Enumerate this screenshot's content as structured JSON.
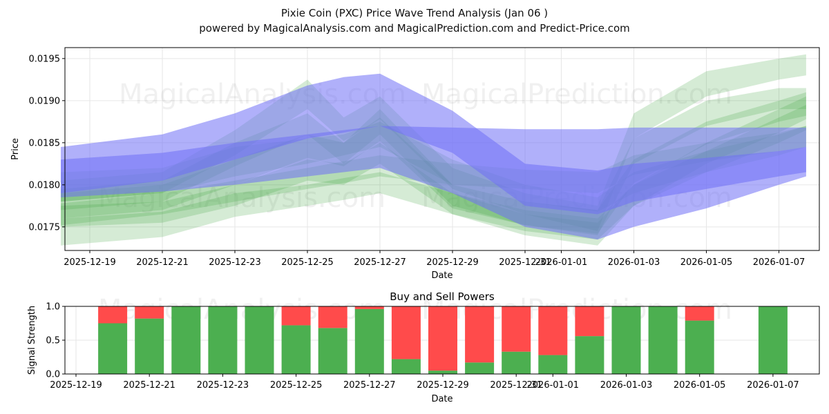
{
  "header": {
    "title": "Pixie Coin (PXC) Price Wave Trend Analysis (Jan 06 )",
    "subtitle": "powered by MagicalAnalysis.com and MagicalPrediction.com and Predict-Price.com"
  },
  "watermarks": [
    "MagicalAnalysis.com",
    "MagicalPrediction.com",
    "MagicalAnalysis.com",
    "MagicalPrediction.com",
    "MagicalAnalysis.com",
    "MagicalPrediction.com"
  ],
  "colors": {
    "blue_band": "#6f6ff5",
    "green_band": "#3fa63f",
    "buy": "#4caf50",
    "sell": "#ff4b4b",
    "grid": "#e6e6e6"
  },
  "chart_data": [
    {
      "type": "area",
      "title": "",
      "xlabel": "Date",
      "ylabel": "Price",
      "ylim": [
        0.01722,
        0.01963
      ],
      "x_tick_labels": [
        "2025-12-19",
        "2025-12-21",
        "2025-12-23",
        "2025-12-25",
        "2025-12-27",
        "2025-12-29",
        "2025-12-31",
        "2026-01-01",
        "2026-01-03",
        "2026-01-05",
        "2026-01-07"
      ],
      "y_tick_labels": [
        "0.0175",
        "0.0180",
        "0.0185",
        "0.0190",
        "0.0195"
      ],
      "y_ticks": [
        0.0175,
        0.018,
        0.0185,
        0.019,
        0.0195
      ],
      "x_days": [
        -0.8,
        2,
        4,
        6,
        7,
        8,
        10,
        12,
        14,
        15,
        17,
        19,
        19.75
      ],
      "blue_bands": [
        {
          "name": "trend-upper",
          "upper": [
            0.01845,
            0.0186,
            0.01885,
            0.01918,
            0.01928,
            0.01932,
            0.01888,
            0.01825,
            0.01817,
            0.01825,
            0.01832,
            0.0184,
            0.01845
          ],
          "lower": [
            0.0179,
            0.01805,
            0.0183,
            0.01855,
            0.01862,
            0.0187,
            0.01838,
            0.01775,
            0.01765,
            0.0178,
            0.01795,
            0.0181,
            0.01815
          ]
        },
        {
          "name": "trend-lower",
          "upper": [
            0.0183,
            0.01838,
            0.0185,
            0.0186,
            0.01865,
            0.0187,
            0.01868,
            0.01866,
            0.01866,
            0.01868,
            0.01868,
            0.01868,
            0.01868
          ],
          "lower": [
            0.01785,
            0.01792,
            0.018,
            0.0181,
            0.01815,
            0.0182,
            0.0179,
            0.0175,
            0.01735,
            0.0175,
            0.01772,
            0.018,
            0.0181
          ]
        }
      ],
      "green_bands": [
        {
          "upper": [
            0.01815,
            0.0182,
            0.01845,
            0.01855,
            0.0186,
            0.01875,
            0.0183,
            0.018,
            0.01785,
            0.01815,
            0.0184,
            0.0186,
            0.0187
          ],
          "lower": [
            0.0178,
            0.0179,
            0.0181,
            0.01825,
            0.01835,
            0.01845,
            0.018,
            0.0178,
            0.01768,
            0.0179,
            0.01815,
            0.01835,
            0.01845
          ]
        },
        {
          "upper": [
            0.01778,
            0.0179,
            0.01805,
            0.0182,
            0.01828,
            0.01835,
            0.01825,
            0.01818,
            0.01815,
            0.01835,
            0.0185,
            0.01862,
            0.0187
          ],
          "lower": [
            0.01752,
            0.01765,
            0.0178,
            0.01795,
            0.01802,
            0.0181,
            0.018,
            0.01795,
            0.0179,
            0.01812,
            0.01828,
            0.0184,
            0.01845
          ]
        },
        {
          "upper": [
            0.0176,
            0.01768,
            0.0179,
            0.018,
            0.01808,
            0.01815,
            0.0179,
            0.0177,
            0.0176,
            0.018,
            0.0184,
            0.0188,
            0.01895
          ],
          "lower": [
            0.01728,
            0.01738,
            0.01762,
            0.01775,
            0.01782,
            0.0179,
            0.01765,
            0.01745,
            0.01735,
            0.01775,
            0.01815,
            0.0185,
            0.01865
          ]
        },
        {
          "upper": [
            0.01805,
            0.01815,
            0.01865,
            0.01925,
            0.0188,
            0.01905,
            0.0182,
            0.0179,
            0.01775,
            0.01885,
            0.01935,
            0.0195,
            0.01955
          ],
          "lower": [
            0.0178,
            0.0179,
            0.01835,
            0.0189,
            0.01852,
            0.01878,
            0.01795,
            0.01765,
            0.01745,
            0.01855,
            0.01905,
            0.01925,
            0.0193
          ]
        },
        {
          "upper": [
            0.01795,
            0.01805,
            0.0185,
            0.01885,
            0.0185,
            0.0189,
            0.018,
            0.0178,
            0.0177,
            0.01855,
            0.019,
            0.01915,
            0.01915
          ],
          "lower": [
            0.0177,
            0.0178,
            0.01822,
            0.0186,
            0.01825,
            0.0186,
            0.01775,
            0.01752,
            0.0174,
            0.01825,
            0.0187,
            0.0189,
            0.0189
          ]
        },
        {
          "upper": [
            0.01775,
            0.0178,
            0.018,
            0.0183,
            0.01825,
            0.0185,
            0.0179,
            0.01765,
            0.01755,
            0.018,
            0.0185,
            0.0189,
            0.01905
          ],
          "lower": [
            0.0175,
            0.01755,
            0.01775,
            0.01805,
            0.018,
            0.01825,
            0.01765,
            0.0174,
            0.01728,
            0.01775,
            0.01825,
            0.01862,
            0.01878
          ]
        },
        {
          "upper": [
            0.0179,
            0.018,
            0.0183,
            0.0186,
            0.0185,
            0.0188,
            0.018,
            0.0178,
            0.0177,
            0.0183,
            0.01875,
            0.019,
            0.0191
          ],
          "lower": [
            0.0176,
            0.0177,
            0.018,
            0.01832,
            0.01822,
            0.01852,
            0.01772,
            0.01752,
            0.01742,
            0.01802,
            0.01848,
            0.01875,
            0.01882
          ]
        }
      ]
    },
    {
      "type": "bar",
      "title": "Buy and Sell Powers",
      "xlabel": "Date",
      "ylabel": "Signal Strength",
      "ylim": [
        0,
        1
      ],
      "y_tick_labels": [
        "0.0",
        "0.5",
        "1.0"
      ],
      "y_ticks": [
        0,
        0.5,
        1.0
      ],
      "x_tick_labels": [
        "2025-12-19",
        "2025-12-21",
        "2025-12-23",
        "2025-12-25",
        "2025-12-27",
        "2025-12-29",
        "2025-12-31",
        "2026-01-01",
        "2026-01-03",
        "2026-01-05",
        "2026-01-07"
      ],
      "categories": [
        "2025-12-20",
        "2025-12-21",
        "2025-12-22",
        "2025-12-23",
        "2025-12-24",
        "2025-12-25",
        "2025-12-26",
        "2025-12-27",
        "2025-12-28",
        "2025-12-29",
        "2025-12-30",
        "2025-12-31",
        "2026-01-01",
        "2026-01-02",
        "2026-01-03",
        "2026-01-04",
        "2026-01-05",
        "2026-01-07"
      ],
      "series": [
        {
          "name": "Buy",
          "values": [
            0.75,
            0.82,
            1.0,
            1.0,
            1.0,
            0.72,
            0.68,
            0.96,
            0.22,
            0.05,
            0.17,
            0.33,
            0.28,
            0.56,
            1.0,
            1.0,
            0.79,
            1.0
          ]
        },
        {
          "name": "Sell",
          "values": [
            0.25,
            0.18,
            0.0,
            0.0,
            0.0,
            0.28,
            0.32,
            0.04,
            0.78,
            0.95,
            0.83,
            0.67,
            0.72,
            0.44,
            0.0,
            0.0,
            0.21,
            0.0
          ]
        }
      ]
    }
  ]
}
